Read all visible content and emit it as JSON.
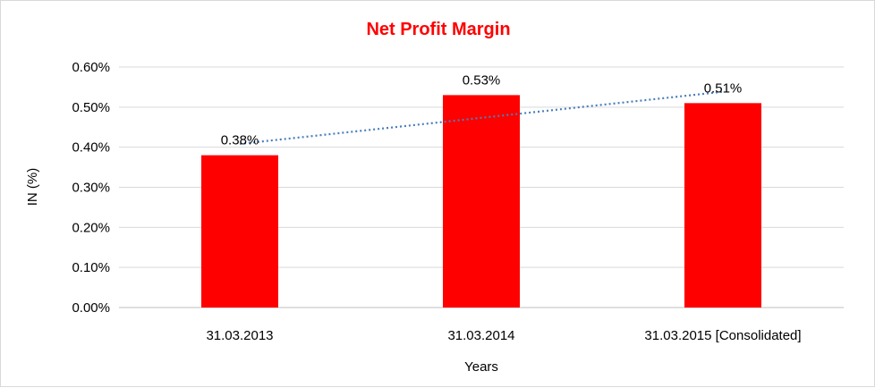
{
  "chart_data": {
    "type": "bar",
    "title": "Net Profit Margin",
    "xlabel": "Years",
    "ylabel": "IN (%)",
    "categories": [
      "31.03.2013",
      "31.03.2014",
      "31.03.2015 [Consolidated]"
    ],
    "values": [
      0.38,
      0.53,
      0.51
    ],
    "data_labels": [
      "0.38%",
      "0.53%",
      "0.51%"
    ],
    "ylim": [
      0,
      0.6
    ],
    "yticks": [
      "0.00%",
      "0.10%",
      "0.20%",
      "0.30%",
      "0.40%",
      "0.50%",
      "0.60%"
    ],
    "grid": true,
    "legend": "none",
    "trendline": "linear dotted",
    "colors": {
      "bar": "#ff0000",
      "title": "#ff0000",
      "trendline": "#4a7ebb",
      "grid": "#d9d9d9"
    }
  }
}
